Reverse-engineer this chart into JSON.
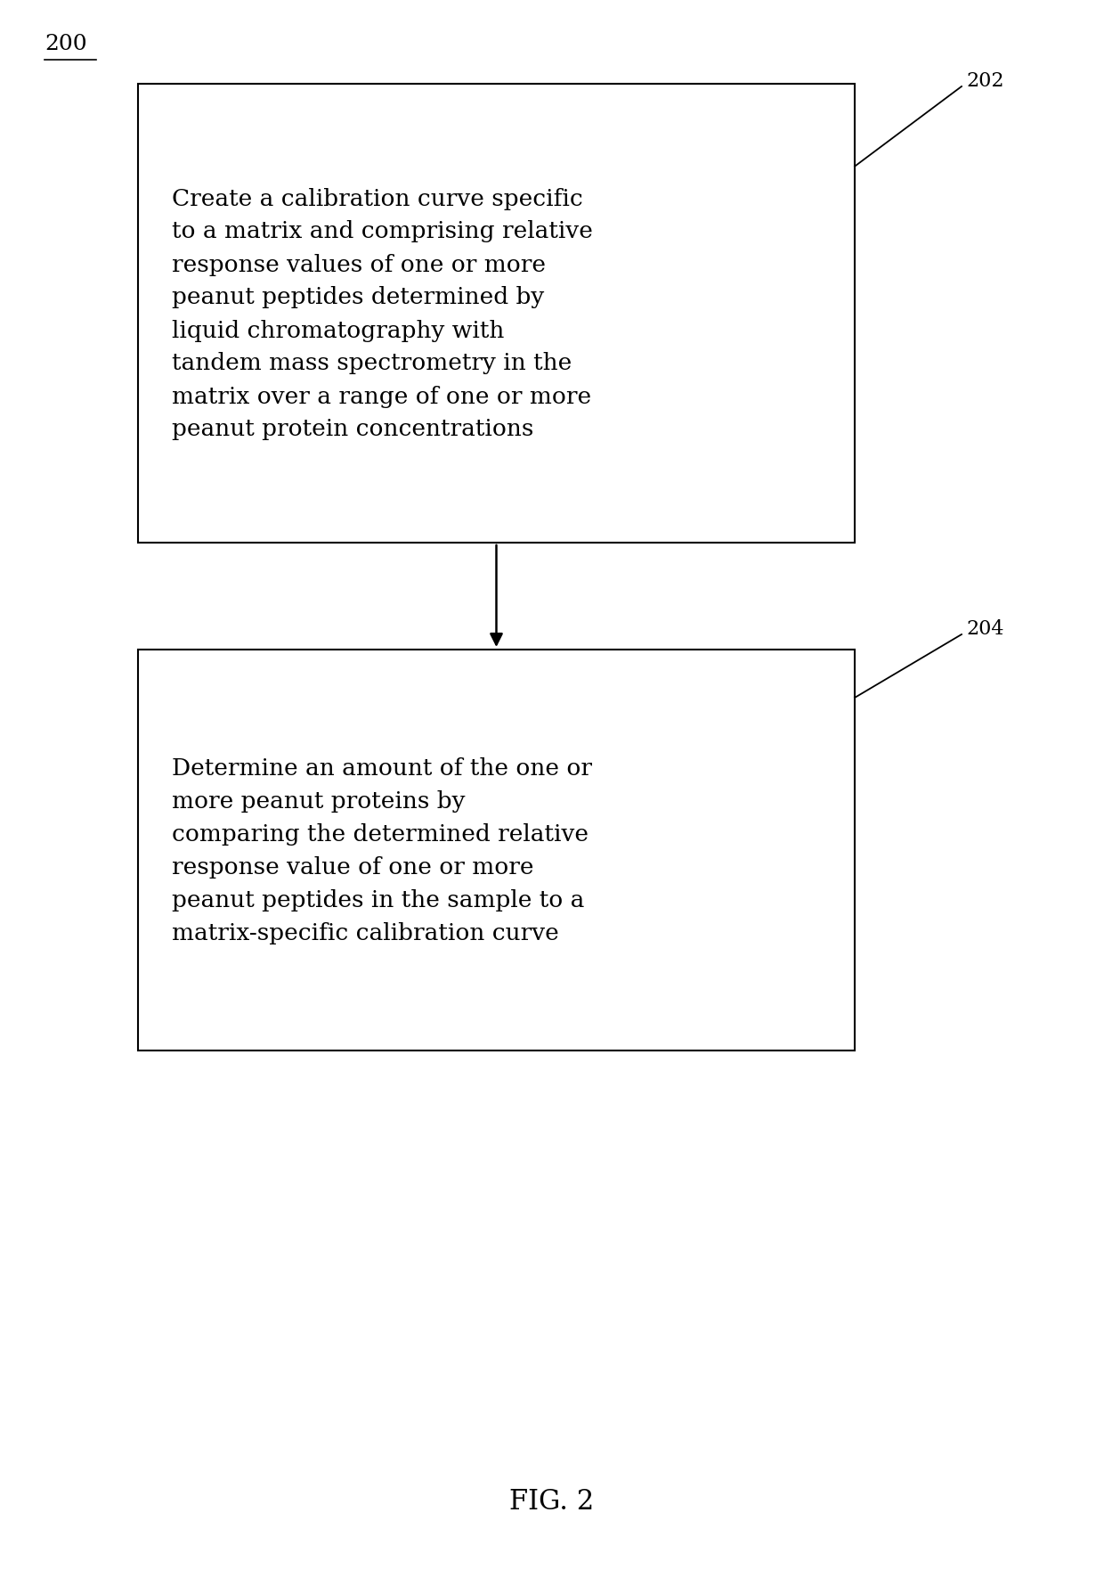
{
  "background_color": "#ffffff",
  "fig_label": "200",
  "fig_caption": "FIG. 2",
  "box1": {
    "label": "202",
    "text": "Create a calibration curve specific\nto a matrix and comprising relative\nresponse values of one or more\npeanut peptides determined by\nliquid chromatography with\ntandem mass spectrometry in the\nmatrix over a range of one or more\npeanut protein concentrations"
  },
  "box2": {
    "label": "204",
    "text": "Determine an amount of the one or\nmore peanut proteins by\ncomparing the determined relative\nresponse value of one or more\npeanut peptides in the sample to a\nmatrix-specific calibration curve"
  },
  "text_color": "#000000",
  "box_edge_color": "#000000",
  "box_face_color": "#ffffff",
  "arrow_color": "#000000",
  "font_size_box": 19,
  "font_size_label": 16,
  "font_size_fig": 22,
  "font_size_200": 18
}
